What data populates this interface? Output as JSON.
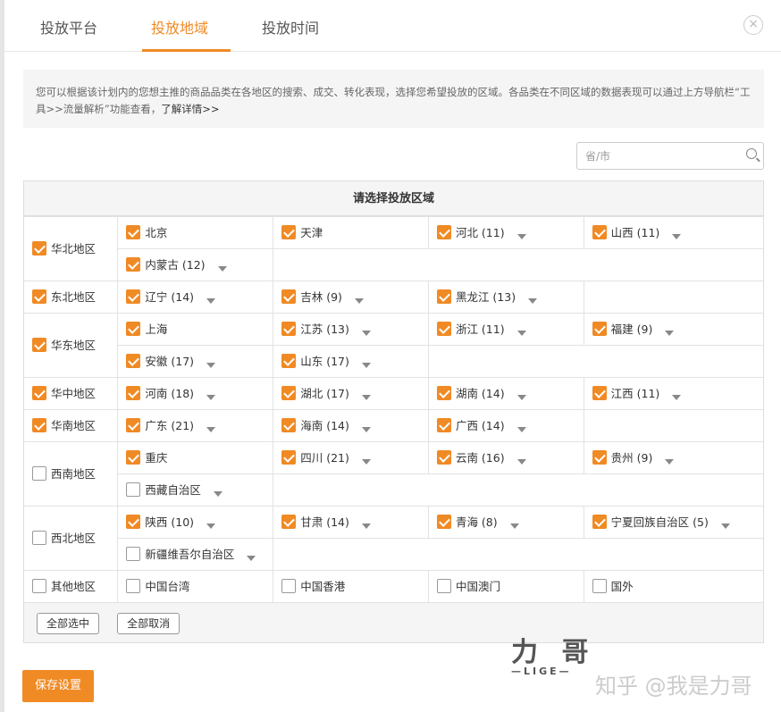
{
  "tabs": [
    {
      "label": "投放平台",
      "active": false
    },
    {
      "label": "投放地域",
      "active": true
    },
    {
      "label": "投放时间",
      "active": false
    }
  ],
  "close_icon": "×",
  "notice": {
    "text": "您可以根据该计划内的您想主推的商品品类在各地区的搜索、成交、转化表现，选择您希望投放的区域。各品类在不同区域的数据表现可以通过上方导航栏“工具>>流量解析”功能查看，",
    "link": "了解详情>>"
  },
  "search": {
    "placeholder": "省/市",
    "value": ""
  },
  "panel": {
    "title": "请选择投放区域",
    "select_all": "全部选中",
    "deselect_all": "全部取消"
  },
  "accent": "#f08a24",
  "regions": [
    {
      "name": "华北地区",
      "checked": true,
      "rows": [
        [
          {
            "n": "北京",
            "c": true
          },
          {
            "n": "天津",
            "c": true
          },
          {
            "n": "河北 (11)",
            "c": true,
            "d": true
          },
          {
            "n": "山西 (11)",
            "c": true,
            "d": true
          }
        ],
        [
          {
            "n": "内蒙古 (12)",
            "c": true,
            "d": true
          }
        ]
      ]
    },
    {
      "name": "东北地区",
      "checked": true,
      "rows": [
        [
          {
            "n": "辽宁 (14)",
            "c": true,
            "d": true
          },
          {
            "n": "吉林 (9)",
            "c": true,
            "d": true
          },
          {
            "n": "黑龙江 (13)",
            "c": true,
            "d": true
          }
        ]
      ]
    },
    {
      "name": "华东地区",
      "checked": true,
      "rows": [
        [
          {
            "n": "上海",
            "c": true
          },
          {
            "n": "江苏 (13)",
            "c": true,
            "d": true
          },
          {
            "n": "浙江 (11)",
            "c": true,
            "d": true
          },
          {
            "n": "福建 (9)",
            "c": true,
            "d": true
          }
        ],
        [
          {
            "n": "安徽 (17)",
            "c": true,
            "d": true
          },
          {
            "n": "山东 (17)",
            "c": true,
            "d": true
          }
        ]
      ]
    },
    {
      "name": "华中地区",
      "checked": true,
      "rows": [
        [
          {
            "n": "河南 (18)",
            "c": true,
            "d": true
          },
          {
            "n": "湖北 (17)",
            "c": true,
            "d": true
          },
          {
            "n": "湖南 (14)",
            "c": true,
            "d": true
          },
          {
            "n": "江西 (11)",
            "c": true,
            "d": true
          }
        ]
      ]
    },
    {
      "name": "华南地区",
      "checked": true,
      "rows": [
        [
          {
            "n": "广东 (21)",
            "c": true,
            "d": true
          },
          {
            "n": "海南 (14)",
            "c": true,
            "d": true
          },
          {
            "n": "广西 (14)",
            "c": true,
            "d": true
          }
        ]
      ]
    },
    {
      "name": "西南地区",
      "checked": false,
      "rows": [
        [
          {
            "n": "重庆",
            "c": true
          },
          {
            "n": "四川 (21)",
            "c": true,
            "d": true
          },
          {
            "n": "云南 (16)",
            "c": true,
            "d": true
          },
          {
            "n": "贵州 (9)",
            "c": true,
            "d": true
          }
        ],
        [
          {
            "n": "西藏自治区",
            "c": false,
            "d": true
          }
        ]
      ]
    },
    {
      "name": "西北地区",
      "checked": false,
      "rows": [
        [
          {
            "n": "陕西 (10)",
            "c": true,
            "d": true
          },
          {
            "n": "甘肃 (14)",
            "c": true,
            "d": true
          },
          {
            "n": "青海 (8)",
            "c": true,
            "d": true
          },
          {
            "n": "宁夏回族自治区 (5)",
            "c": true,
            "d": true
          }
        ],
        [
          {
            "n": "新疆维吾尔自治区",
            "c": false,
            "d": true
          }
        ]
      ]
    },
    {
      "name": "其他地区",
      "checked": false,
      "rows": [
        [
          {
            "n": "中国台湾",
            "c": false
          },
          {
            "n": "中国香港",
            "c": false
          },
          {
            "n": "中国澳门",
            "c": false
          },
          {
            "n": "国外",
            "c": false
          }
        ]
      ]
    }
  ],
  "save_label": "保存设置",
  "watermark": {
    "logo": "力哥",
    "logo_sub": "—LIGE—",
    "text": "知乎 @我是力哥"
  }
}
